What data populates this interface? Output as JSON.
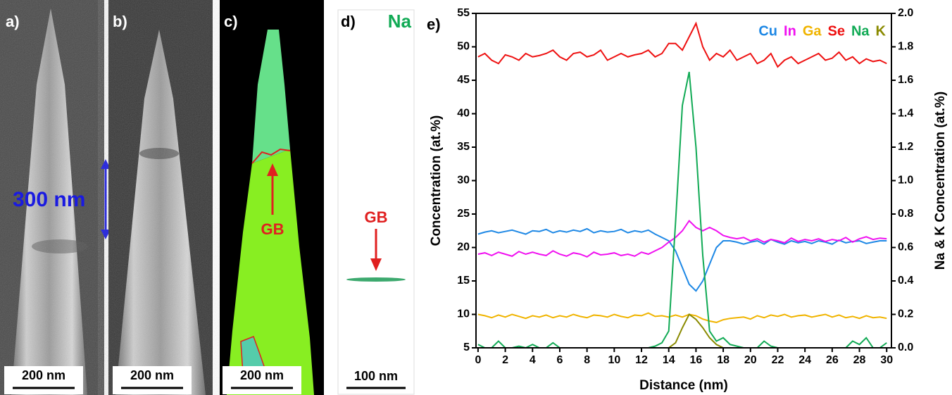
{
  "panels": [
    {
      "label": "a)",
      "annotation": "300 nm",
      "scale_bar": "200 nm"
    },
    {
      "label": "b)",
      "scale_bar": "200 nm"
    },
    {
      "label": "c)",
      "annotation": "GB",
      "scale_bar": "200 nm"
    },
    {
      "label": "d)",
      "element": "Na",
      "annotation": "GB",
      "scale_bar": "100 nm"
    },
    {
      "label": "e)"
    }
  ],
  "chart_data": {
    "type": "line",
    "x_label": "Distance (nm)",
    "y_label": "Concentration (at.%)",
    "y2_label": "Na & K Concentration (at.%)",
    "x": [
      0,
      0.5,
      1,
      1.5,
      2,
      2.5,
      3,
      3.5,
      4,
      4.5,
      5,
      5.5,
      6,
      6.5,
      7,
      7.5,
      8,
      8.5,
      9,
      9.5,
      10,
      10.5,
      11,
      11.5,
      12,
      12.5,
      13,
      13.5,
      14,
      14.5,
      15,
      15.5,
      16,
      16.5,
      17,
      17.5,
      18,
      18.5,
      19,
      19.5,
      20,
      20.5,
      21,
      21.5,
      22,
      22.5,
      23,
      23.5,
      24,
      24.5,
      25,
      25.5,
      26,
      26.5,
      27,
      27.5,
      28,
      28.5,
      29,
      29.5,
      30
    ],
    "xlim": [
      -0.15,
      30.35
    ],
    "xticks": [
      0,
      2,
      4,
      6,
      8,
      10,
      12,
      14,
      16,
      18,
      20,
      22,
      24,
      26,
      28,
      30
    ],
    "ylim": [
      5,
      55
    ],
    "yticks": [
      5,
      10,
      15,
      20,
      25,
      30,
      35,
      40,
      45,
      50,
      55
    ],
    "y2lim": [
      0,
      2
    ],
    "y2ticks": [
      {
        "value": 0,
        "label": "0.0"
      },
      0.2,
      0.4,
      0.6,
      0.8,
      {
        "value": 1,
        "label": "1.0"
      },
      1.2,
      1.4,
      1.6,
      1.8,
      {
        "value": 2,
        "label": "2.0"
      }
    ],
    "legend": "upper right",
    "series": [
      {
        "name": "Cu",
        "color": "#1e88e5",
        "values": [
          22,
          22.3,
          22.5,
          22.2,
          22.4,
          22.6,
          22.3,
          22,
          22.5,
          22.4,
          22.7,
          22.2,
          22.5,
          22.3,
          22.6,
          22.4,
          22.8,
          22.2,
          22.5,
          22.3,
          22.4,
          22.7,
          22.2,
          22.5,
          22.3,
          22.6,
          22,
          21.5,
          21,
          19.5,
          17,
          14.5,
          13.5,
          15,
          17.5,
          20,
          21,
          21,
          20.8,
          20.5,
          20.8,
          21,
          20.5,
          21.2,
          20.8,
          20.5,
          21,
          20.7,
          20.9,
          20.6,
          21,
          20.8,
          20.5,
          21.1,
          20.7,
          20.9,
          21,
          20.6,
          20.8,
          21,
          21
        ]
      },
      {
        "name": "In",
        "color": "#f010f0",
        "values": [
          19,
          19.2,
          18.8,
          19.3,
          19,
          18.7,
          19.4,
          19,
          19.3,
          19,
          18.8,
          19.5,
          19,
          18.7,
          19.2,
          19,
          18.6,
          19.3,
          18.9,
          19,
          19.2,
          18.8,
          19,
          18.7,
          19.3,
          19,
          19.5,
          20,
          20.8,
          21.5,
          22.5,
          24,
          23,
          22.5,
          23,
          22.5,
          21.8,
          21.5,
          21.3,
          21.5,
          21,
          21.3,
          20.8,
          21.2,
          21,
          20.7,
          21.4,
          20.9,
          21.2,
          21,
          21.3,
          20.9,
          21.2,
          21,
          21.5,
          20.8,
          21.3,
          21.6,
          21.2,
          21.4,
          21.3
        ]
      },
      {
        "name": "Ga",
        "color": "#f0b400",
        "values": [
          10,
          9.8,
          9.5,
          9.9,
          9.6,
          10,
          9.7,
          9.4,
          9.8,
          9.6,
          9.9,
          9.5,
          9.8,
          9.6,
          10,
          9.7,
          9.5,
          9.9,
          9.8,
          9.6,
          10,
          9.7,
          9.5,
          9.9,
          9.8,
          10.2,
          9.7,
          9.8,
          9.6,
          9.9,
          9.6,
          10,
          9.8,
          9.3,
          9,
          8.8,
          9.2,
          9.4,
          9.5,
          9.6,
          9.3,
          9.8,
          9.5,
          9.9,
          9.7,
          10,
          9.6,
          9.8,
          9.9,
          9.6,
          9.8,
          10,
          9.6,
          9.9,
          9.5,
          9.7,
          9.4,
          9.8,
          9.5,
          9.6,
          9.4
        ]
      },
      {
        "name": "Se",
        "color": "#ee1111",
        "values": [
          48.5,
          49,
          48,
          47.5,
          48.8,
          48.5,
          48,
          49,
          48.5,
          48.7,
          49,
          49.5,
          48.5,
          48,
          49,
          49.2,
          48.5,
          48.8,
          49.5,
          48,
          48.5,
          49,
          48.5,
          48.8,
          49,
          49.5,
          48.5,
          49,
          50.5,
          50.5,
          49.5,
          51.5,
          53.5,
          50,
          48,
          49,
          48.5,
          49.5,
          48,
          48.5,
          49,
          47.5,
          48,
          49,
          47,
          48,
          48.5,
          47.5,
          48,
          48.5,
          49,
          48,
          48.3,
          49.2,
          48,
          48.5,
          47.5,
          48.2,
          47.8,
          48,
          47.5
        ]
      },
      {
        "name": "Na",
        "color": "#11aa55",
        "axis": "y2",
        "values": [
          0.02,
          0,
          0,
          0.04,
          0,
          0,
          0.01,
          0,
          0.02,
          0,
          0,
          0.03,
          0,
          0,
          0,
          0,
          0,
          0,
          0,
          0,
          0,
          0,
          0,
          0,
          0,
          0,
          0.01,
          0.03,
          0.1,
          0.75,
          1.45,
          1.65,
          1.2,
          0.55,
          0.1,
          0.04,
          0.06,
          0.02,
          0.01,
          0,
          0,
          0,
          0.04,
          0.01,
          0,
          0,
          0,
          0,
          0,
          0,
          0,
          0,
          0,
          0,
          0,
          0.04,
          0.02,
          0.06,
          0,
          0,
          0.03
        ]
      },
      {
        "name": "K",
        "color": "#8a8a00",
        "axis": "y2",
        "values": [
          0,
          0,
          0,
          0,
          0,
          0,
          0,
          0,
          0,
          0,
          0,
          0,
          0,
          0,
          0,
          0,
          0,
          0,
          0,
          0,
          0,
          0,
          0,
          0,
          0,
          0,
          0,
          0,
          0,
          0.03,
          0.12,
          0.2,
          0.17,
          0.12,
          0.06,
          0.02,
          0,
          0,
          0,
          0,
          0,
          0,
          0,
          0,
          0,
          0,
          0,
          0,
          0,
          0,
          0,
          0,
          0,
          0,
          0,
          0,
          0,
          0,
          0,
          0,
          0
        ]
      }
    ]
  }
}
